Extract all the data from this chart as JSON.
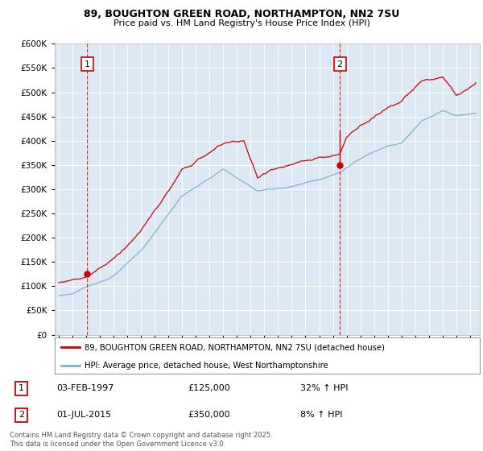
{
  "title1": "89, BOUGHTON GREEN ROAD, NORTHAMPTON, NN2 7SU",
  "title2": "Price paid vs. HM Land Registry's House Price Index (HPI)",
  "ylim": [
    0,
    600000
  ],
  "yticks": [
    0,
    50000,
    100000,
    150000,
    200000,
    250000,
    300000,
    350000,
    400000,
    450000,
    500000,
    550000,
    600000
  ],
  "ytick_labels": [
    "£0",
    "£50K",
    "£100K",
    "£150K",
    "£200K",
    "£250K",
    "£300K",
    "£350K",
    "£400K",
    "£450K",
    "£500K",
    "£550K",
    "£600K"
  ],
  "xlim_start": 1994.7,
  "xlim_end": 2025.7,
  "plot_bg_color": "#dce9f5",
  "red_color": "#cc0000",
  "blue_color": "#7ab3d0",
  "grid_color": "#ffffff",
  "ann1_x": 1997.08,
  "ann1_y": 125000,
  "ann2_x": 2015.5,
  "ann2_y": 350000,
  "legend1_label": "89, BOUGHTON GREEN ROAD, NORTHAMPTON, NN2 7SU (detached house)",
  "legend2_label": "HPI: Average price, detached house, West Northamptonshire",
  "footer": "Contains HM Land Registry data © Crown copyright and database right 2025.\nThis data is licensed under the Open Government Licence v3.0.",
  "table1_label": "1",
  "table1_date": "03-FEB-1997",
  "table1_price": "£125,000",
  "table1_hpi": "32% ↑ HPI",
  "table2_label": "2",
  "table2_date": "01-JUL-2015",
  "table2_price": "£350,000",
  "table2_hpi": "8% ↑ HPI"
}
